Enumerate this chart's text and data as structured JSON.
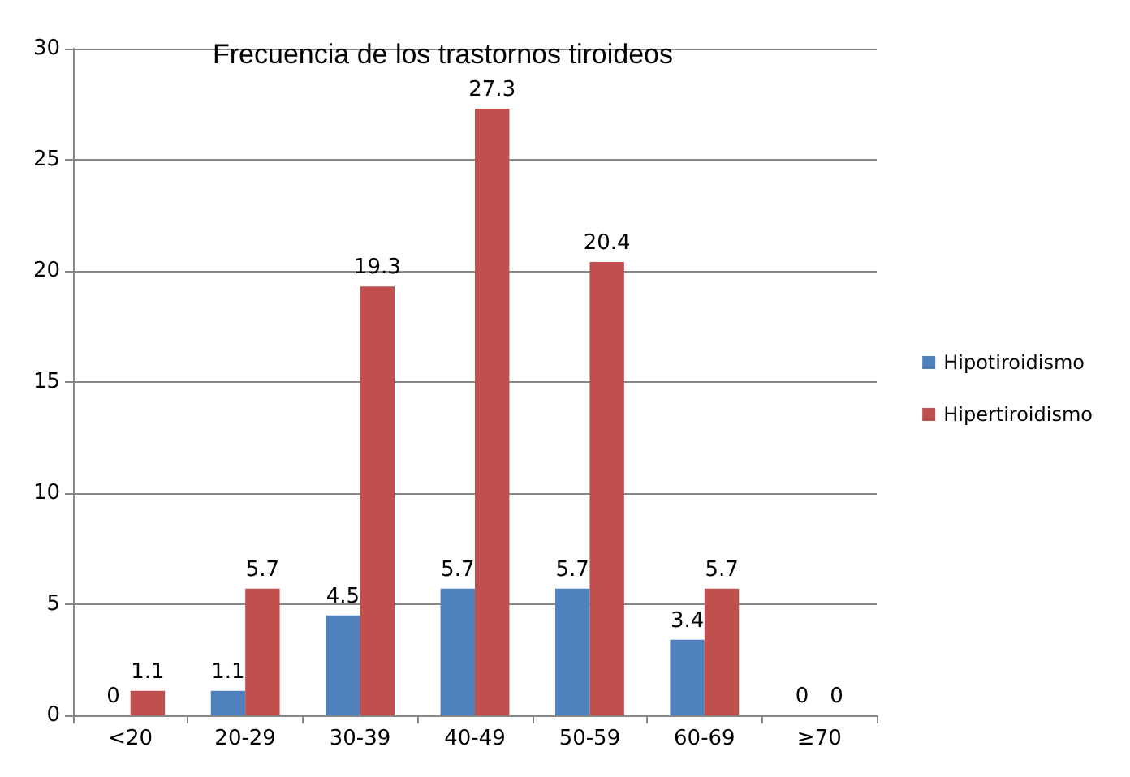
{
  "chart_data": {
    "type": "bar",
    "title": "Frecuencia de los trastornos tiroideos",
    "categories": [
      "<20",
      "20-29",
      "30-39",
      "40-49",
      "50-59",
      "60-69",
      "≥70"
    ],
    "series": [
      {
        "name": "Hipotiroidismo",
        "color": "#4f81bd",
        "values": [
          0,
          1.1,
          4.5,
          5.7,
          5.7,
          3.4,
          0
        ]
      },
      {
        "name": "Hipertiroidismo",
        "color": "#c0504d",
        "values": [
          1.1,
          5.7,
          19.3,
          27.3,
          20.4,
          5.7,
          0
        ]
      }
    ],
    "ylim": [
      0,
      30
    ],
    "yticks": [
      0,
      5,
      10,
      15,
      20,
      25,
      30
    ],
    "grid": "y",
    "legend": "right",
    "data_labels": true
  }
}
